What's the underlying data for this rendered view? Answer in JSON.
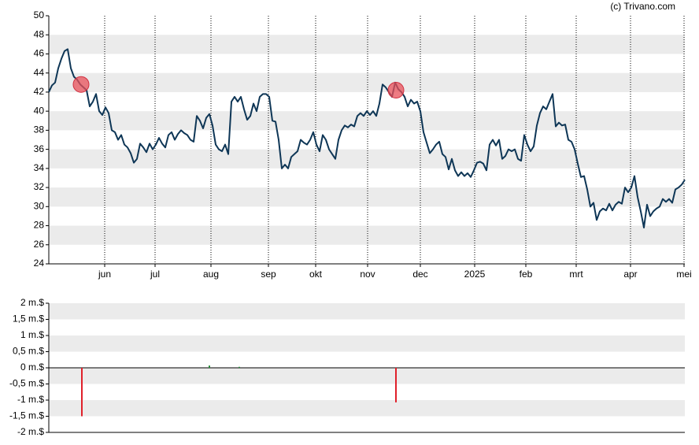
{
  "source": "(c) Trivano.com",
  "chart_data": [
    {
      "type": "line",
      "x": [
        0,
        2,
        4,
        6,
        8,
        10,
        12,
        14,
        16,
        18,
        20,
        22,
        24,
        26,
        28,
        30,
        32,
        34,
        36,
        38,
        40,
        42,
        44,
        46,
        48,
        50,
        52,
        54,
        56,
        58,
        60,
        62,
        64,
        66,
        68,
        70,
        72,
        74,
        76,
        78,
        80,
        82,
        84,
        86,
        88,
        90,
        92,
        94,
        96,
        98,
        100,
        102,
        104,
        106,
        108,
        110,
        112,
        114,
        116,
        118,
        120,
        122,
        124,
        126,
        128,
        130,
        132,
        134,
        136,
        138,
        140,
        142,
        144,
        146,
        148,
        150,
        152,
        154,
        156,
        158,
        160,
        162,
        164,
        166,
        168,
        170,
        172,
        174,
        176,
        178,
        180,
        182,
        184,
        186,
        188,
        190,
        192,
        194,
        196,
        198,
        200,
        202,
        204,
        206,
        208,
        210,
        212,
        214,
        216,
        218,
        220,
        222,
        224,
        226,
        228,
        230,
        232,
        234,
        236,
        238,
        240,
        242,
        244,
        246,
        248,
        250,
        252,
        254,
        256,
        258,
        260,
        262,
        264,
        266,
        268,
        270,
        272,
        274,
        276,
        278,
        280,
        282,
        284,
        286,
        288,
        290,
        292,
        294,
        296,
        298,
        300,
        302,
        304,
        306,
        308,
        310,
        312,
        314,
        316,
        318,
        320,
        322,
        324,
        326,
        328,
        330,
        332,
        334,
        336,
        338,
        340,
        342,
        344,
        346,
        348,
        350,
        352,
        354,
        356,
        358,
        360,
        362,
        364,
        366,
        368,
        370,
        372,
        374,
        376,
        378,
        380,
        382,
        384,
        386,
        388,
        390,
        392,
        394,
        396,
        398,
        400,
        402,
        404
      ],
      "series": [
        {
          "color": "#0e3656",
          "values": [
            42.0,
            42.7,
            43.0,
            44.5,
            45.5,
            46.3,
            46.5,
            44.5,
            43.6,
            43.3,
            42.8,
            42.5,
            42.2,
            40.5,
            41.0,
            41.8,
            40.0,
            39.6,
            40.4,
            39.8,
            38.0,
            37.8,
            37.0,
            37.5,
            36.5,
            36.2,
            35.6,
            34.6,
            35.0,
            36.6,
            36.2,
            35.7,
            36.6,
            36.0,
            36.5,
            37.2,
            36.6,
            36.2,
            37.5,
            37.8,
            37.0,
            37.6,
            38.0,
            37.7,
            37.5,
            37.0,
            36.8,
            39.5,
            39.0,
            38.2,
            39.3,
            39.7,
            38.5,
            36.5,
            36.0,
            35.8,
            36.5,
            35.5,
            41.0,
            41.5,
            41.0,
            41.5,
            40.2,
            39.1,
            39.5,
            40.8,
            40.0,
            41.5,
            41.8,
            41.8,
            41.5,
            39.0,
            38.9,
            37.0,
            34.0,
            34.4,
            34.0,
            35.2,
            35.5,
            35.8,
            37.0,
            36.7,
            36.5,
            37.0,
            37.8,
            36.5,
            35.8,
            37.5,
            37.0,
            36.0,
            35.5,
            35.0,
            37.0,
            38.0,
            38.5,
            38.3,
            38.6,
            38.4,
            39.5,
            39.8,
            39.5,
            40.0,
            39.6,
            40.0,
            39.5,
            40.8,
            42.8,
            42.5,
            42.0,
            41.5,
            43.0,
            42.3,
            42.0,
            41.5,
            40.5,
            41.2,
            40.8,
            41.0,
            40.0,
            37.8,
            36.7,
            35.6,
            36.0,
            36.5,
            36.8,
            35.5,
            35.2,
            33.9,
            35.0,
            33.8,
            33.2,
            33.6,
            33.2,
            33.5,
            33.1,
            33.8,
            34.6,
            34.7,
            34.5,
            33.8,
            36.5,
            37.0,
            36.4,
            37.0,
            35.0,
            35.3,
            36.0,
            35.8,
            36.0,
            35.0,
            34.8,
            37.5,
            36.5,
            35.8,
            36.3,
            38.5,
            39.8,
            40.5,
            40.2,
            41.0,
            41.8,
            38.4,
            38.8,
            38.5,
            38.6,
            37.0,
            36.8,
            36.0,
            34.5,
            33.1,
            33.2,
            31.8,
            30.0,
            30.4,
            28.6,
            29.5,
            29.8,
            29.6,
            30.3,
            29.6,
            30.2,
            30.5,
            30.3,
            32.0,
            31.5,
            32.0,
            33.2,
            31.0,
            29.5,
            27.8,
            30.2,
            29.0,
            29.5,
            29.8,
            30.0,
            30.8,
            30.5,
            30.8,
            30.4,
            31.8,
            32.0,
            32.3,
            32.8
          ]
        }
      ],
      "markers": {
        "color": "#e8505a",
        "x": [
          20.5,
          220.5
        ],
        "values": [
          42.8,
          42.2
        ]
      },
      "xlim": [
        0,
        404
      ],
      "xticks": [
        {
          "value": 35.5,
          "label": "jun"
        },
        {
          "value": 67.5,
          "label": "jul"
        },
        {
          "value": 103,
          "label": "aug"
        },
        {
          "value": 139.5,
          "label": "sep"
        },
        {
          "value": 169.5,
          "label": "okt"
        },
        {
          "value": 202.5,
          "label": "nov"
        },
        {
          "value": 236,
          "label": "dec"
        },
        {
          "value": 270.5,
          "label": "2025"
        },
        {
          "value": 303,
          "label": "feb"
        },
        {
          "value": 335,
          "label": "mrt"
        },
        {
          "value": 369.5,
          "label": "apr"
        },
        {
          "value": 403.5,
          "label": "mei"
        }
      ],
      "ylim": [
        24,
        50
      ],
      "yticks": [
        24,
        26,
        28,
        30,
        32,
        34,
        36,
        38,
        40,
        42,
        44,
        46,
        48,
        50
      ],
      "grid": true
    },
    {
      "type": "bar",
      "x": [
        21,
        102,
        121,
        220.5
      ],
      "values": [
        -1.5,
        0.07,
        0.03,
        -1.07
      ],
      "colors": [
        "#e0202a",
        "#2a8a3a",
        "#2a8a3a",
        "#e0202a"
      ],
      "xlim": [
        0,
        404
      ],
      "ylim": [
        -2,
        2
      ],
      "yticks": [
        {
          "value": -2,
          "label": "-2 m.$"
        },
        {
          "value": -1.5,
          "label": "-1,5 m.$"
        },
        {
          "value": -1,
          "label": "-1 m.$"
        },
        {
          "value": -0.5,
          "label": "-0,5 m.$"
        },
        {
          "value": 0,
          "label": "0 m.$"
        },
        {
          "value": 0.5,
          "label": "0,5 m.$"
        },
        {
          "value": 1,
          "label": "1 m.$"
        },
        {
          "value": 1.5,
          "label": "1,5 m.$"
        },
        {
          "value": 2,
          "label": "2 m.$"
        }
      ]
    }
  ]
}
